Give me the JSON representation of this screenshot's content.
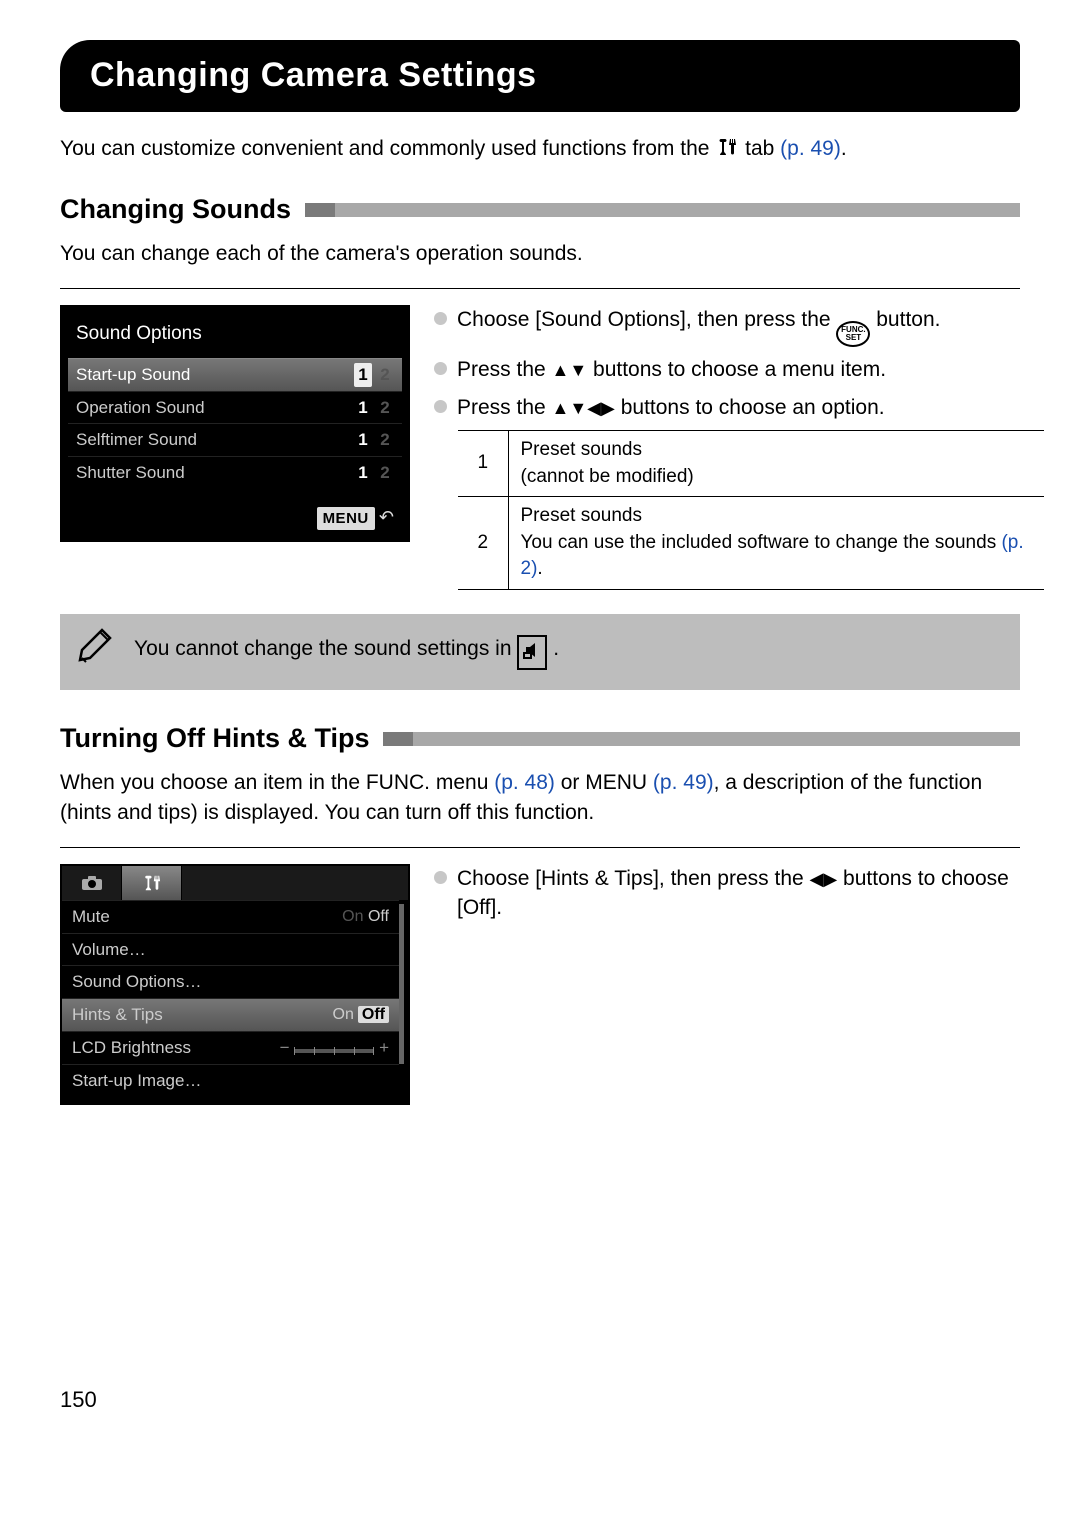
{
  "page": {
    "title": "Changing Camera Settings",
    "intro_1": "You can customize convenient and commonly used functions from the ",
    "intro_2": " tab ",
    "intro_ref": "(p. 49)",
    "intro_3": ".",
    "page_number": "150"
  },
  "sounds": {
    "heading": "Changing Sounds",
    "intro": "You can change each of the camera's operation sounds.",
    "lcd_title": "Sound Options",
    "rows": [
      {
        "label": "Start-up Sound",
        "opts": [
          "1",
          "2"
        ],
        "selected_row": true,
        "active_opt": 0
      },
      {
        "label": "Operation Sound",
        "opts": [
          "1",
          "2"
        ],
        "selected_row": false,
        "active_opt": 0
      },
      {
        "label": "Selftimer Sound",
        "opts": [
          "1",
          "2"
        ],
        "selected_row": false,
        "active_opt": 0
      },
      {
        "label": "Shutter Sound",
        "opts": [
          "1",
          "2"
        ],
        "selected_row": false,
        "active_opt": 0
      }
    ],
    "menu_label": "MENU",
    "b1a": "Choose [Sound Options], then press the ",
    "b1b": " button.",
    "func_top": "FUNC.",
    "func_bot": "SET",
    "b2a": "Press the ",
    "b2b": " buttons to choose a menu item.",
    "b3a": "Press the ",
    "b3b": " buttons to choose an option.",
    "table": [
      {
        "n": "1",
        "t1": "Preset sounds",
        "t2": "(cannot be modified)"
      },
      {
        "n": "2",
        "t1": "Preset sounds",
        "t2": "You can use the included software to change the sounds ",
        "ref": "(p. 2)",
        "t3": "."
      }
    ],
    "note": "You cannot change the sound settings in "
  },
  "hints": {
    "heading": "Turning Off Hints & Tips",
    "p1": "When you choose an item in the FUNC. menu ",
    "r1": "(p. 48)",
    "p2": " or MENU ",
    "r2": "(p. 49)",
    "p3": ", a description of the function (hints and tips) is displayed. You can turn off this function.",
    "b1a": "Choose [Hints & Tips], then press the ",
    "b1b": " buttons to choose [Off].",
    "lcd_rows": [
      {
        "label": "Mute",
        "value_left": "On",
        "value_right": "Off",
        "style": "dim"
      },
      {
        "label": "Volume…",
        "value_left": "",
        "value_right": ""
      },
      {
        "label": "Sound Options…",
        "value_left": "",
        "value_right": ""
      },
      {
        "label": "Hints & Tips",
        "value_left": "On",
        "value_right": "Off",
        "selected": true
      },
      {
        "label": "LCD Brightness",
        "slider": true
      },
      {
        "label": "Start-up Image…",
        "value_left": "",
        "value_right": ""
      }
    ]
  }
}
